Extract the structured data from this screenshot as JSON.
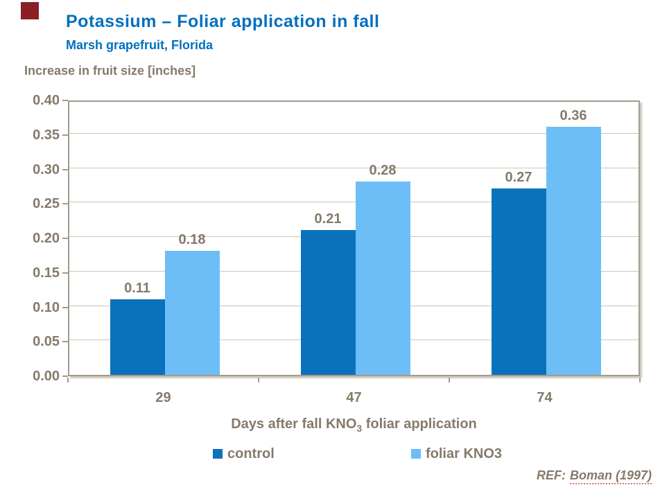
{
  "header": {
    "title": "Potassium – Foliar application in fall",
    "subtitle": "Marsh grapefruit, Florida"
  },
  "y_axis_title": "Increase in fruit size [inches]",
  "chart_data": {
    "type": "bar",
    "title": "Potassium – Foliar application in fall",
    "subtitle": "Marsh grapefruit, Florida",
    "categories": [
      "29",
      "47",
      "74"
    ],
    "series": [
      {
        "name": "control",
        "color": "#0A72BC",
        "values": [
          0.11,
          0.21,
          0.27
        ],
        "labels": [
          "0.11",
          "0.21",
          "0.27"
        ]
      },
      {
        "name": "foliar KNO3",
        "color": "#6DBEF7",
        "values": [
          0.18,
          0.28,
          0.36
        ],
        "labels": [
          "0.18",
          "0.28",
          "0.36"
        ]
      }
    ],
    "xlabel": "Days after fall KNO3 foliar application",
    "ylabel": "Increase in fruit size [inches]",
    "ylim": [
      0,
      0.4
    ],
    "ytick_step": 0.05,
    "yticks": [
      "0.00",
      "0.05",
      "0.10",
      "0.15",
      "0.20",
      "0.25",
      "0.30",
      "0.35",
      "0.40"
    ],
    "grid": true,
    "legend_position": "bottom"
  },
  "xaxis_title": {
    "pre": "Days after fall KNO",
    "sub": "3",
    "post": " foliar application"
  },
  "legend": {
    "items": [
      {
        "label": "control",
        "color": "#0A72BC"
      },
      {
        "label": "foliar KNO3",
        "color": "#6DBEF7"
      }
    ]
  },
  "footer": {
    "ref_prefix": "REF:",
    "ref_citation": "Boman (1997)"
  },
  "colors": {
    "title_blue": "#0070C0",
    "control_bar": "#0A72BC",
    "foliar_bar": "#6DBEF7",
    "text_brown": "#857A6A",
    "gridline": "#CCC5B9",
    "axis_frame": "#A49B8C",
    "accent_red": "#8B2024"
  }
}
